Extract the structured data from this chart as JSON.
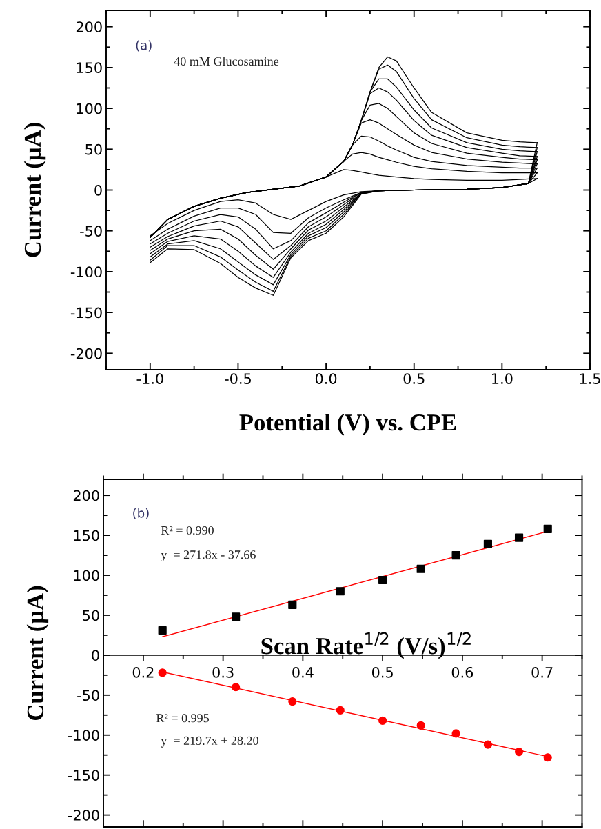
{
  "chart_data": [
    {
      "type": "line",
      "xlabel": "Potential (V) vs. CPE",
      "ylabel": "Current (μA)",
      "annotations": [
        "(a)",
        "40 mM Glucosamine"
      ],
      "xlim": [
        -1.25,
        1.5
      ],
      "xticks": [
        {
          "value": -1.0,
          "label": "-1.0"
        },
        {
          "value": -0.5,
          "label": "-0.5"
        },
        {
          "value": 0.0,
          "label": "0.0"
        },
        {
          "value": 0.5,
          "label": "0.5"
        },
        {
          "value": 1.0,
          "label": "1.0"
        },
        {
          "value": 1.5,
          "label": "1.5"
        }
      ],
      "ylim": [
        -220,
        220
      ],
      "yticks": [
        {
          "value": -200,
          "label": "-200"
        },
        {
          "value": -150,
          "label": "-150"
        },
        {
          "value": -100,
          "label": "-100"
        },
        {
          "value": -50,
          "label": "-50"
        },
        0,
        50,
        100,
        150,
        200
      ],
      "grid": false,
      "legend": false,
      "line_style": "solid",
      "marker": "none",
      "series": [
        {
          "color": "#000000",
          "x": [
            -1.0,
            -0.9,
            -0.75,
            -0.6,
            -0.45,
            -0.3,
            -0.15,
            0.0,
            0.1,
            0.15,
            0.2,
            0.25,
            0.3,
            0.35,
            0.4,
            0.5,
            0.6,
            0.8,
            1.0,
            1.1,
            1.2
          ],
          "values": [
            -58,
            -36,
            -20,
            -10,
            -3,
            1,
            5,
            16,
            25,
            24,
            22,
            20,
            18,
            17,
            16,
            14,
            13,
            12,
            12,
            13,
            14
          ]
        },
        {
          "color": "#000000",
          "x": [
            1.2,
            1.15,
            1.0,
            0.8,
            0.5,
            0.3,
            0.2,
            0.1,
            0.0,
            -0.1,
            -0.2,
            -0.3,
            -0.4,
            -0.5,
            -0.6,
            -0.75,
            -0.9,
            -1.0
          ],
          "values": [
            14,
            8,
            3,
            1,
            0,
            -1,
            -2,
            -6,
            -14,
            -25,
            -36,
            -30,
            -16,
            -12,
            -14,
            -25,
            -41,
            -56
          ]
        },
        {
          "color": "#000000",
          "x": [
            -1.0,
            -0.9,
            -0.75,
            -0.6,
            -0.45,
            -0.3,
            -0.15,
            0.0,
            0.1,
            0.15,
            0.2,
            0.25,
            0.3,
            0.35,
            0.4,
            0.5,
            0.6,
            0.8,
            1.0,
            1.1,
            1.2
          ],
          "values": [
            -58,
            -36,
            -20,
            -10,
            -3,
            1,
            5,
            16,
            35,
            44,
            46,
            44,
            40,
            37,
            34,
            29,
            26,
            23,
            21,
            21,
            21
          ]
        },
        {
          "color": "#000000",
          "x": [
            1.2,
            1.15,
            1.0,
            0.8,
            0.5,
            0.3,
            0.2,
            0.1,
            0.0,
            -0.1,
            -0.2,
            -0.3,
            -0.4,
            -0.5,
            -0.6,
            -0.75,
            -0.9,
            -1.0
          ],
          "values": [
            21,
            8,
            3,
            1,
            0,
            -1,
            -3,
            -12,
            -22,
            -34,
            -53,
            -52,
            -30,
            -22,
            -22,
            -32,
            -48,
            -62
          ]
        },
        {
          "color": "#000000",
          "x": [
            -1.0,
            -0.9,
            -0.75,
            -0.6,
            -0.45,
            -0.3,
            -0.15,
            0.0,
            0.1,
            0.15,
            0.2,
            0.25,
            0.3,
            0.35,
            0.4,
            0.5,
            0.6,
            0.8,
            1.0,
            1.1,
            1.2
          ],
          "values": [
            -58,
            -36,
            -20,
            -10,
            -3,
            1,
            5,
            16,
            35,
            55,
            66,
            65,
            60,
            54,
            49,
            40,
            35,
            30,
            28,
            27,
            27
          ]
        },
        {
          "color": "#000000",
          "x": [
            1.2,
            1.15,
            1.0,
            0.8,
            0.5,
            0.3,
            0.2,
            0.1,
            0.0,
            -0.1,
            -0.2,
            -0.3,
            -0.4,
            -0.5,
            -0.6,
            -0.75,
            -0.9,
            -1.0
          ],
          "values": [
            27,
            8,
            3,
            1,
            0,
            -1,
            -3,
            -15,
            -28,
            -40,
            -62,
            -72,
            -48,
            -33,
            -30,
            -38,
            -53,
            -66
          ]
        },
        {
          "color": "#000000",
          "x": [
            -1.0,
            -0.9,
            -0.75,
            -0.6,
            -0.45,
            -0.3,
            -0.15,
            0.0,
            0.1,
            0.15,
            0.2,
            0.25,
            0.3,
            0.35,
            0.4,
            0.5,
            0.6,
            0.8,
            1.0,
            1.1,
            1.2
          ],
          "values": [
            -58,
            -36,
            -20,
            -10,
            -3,
            1,
            5,
            16,
            35,
            55,
            82,
            86,
            82,
            75,
            68,
            55,
            46,
            38,
            34,
            33,
            32
          ]
        },
        {
          "color": "#000000",
          "x": [
            1.2,
            1.15,
            1.0,
            0.8,
            0.5,
            0.3,
            0.2,
            0.1,
            0.0,
            -0.1,
            -0.2,
            -0.3,
            -0.4,
            -0.5,
            -0.6,
            -0.75,
            -0.9,
            -1.0
          ],
          "values": [
            32,
            8,
            3,
            1,
            0,
            -1,
            -3,
            -18,
            -33,
            -45,
            -68,
            -85,
            -65,
            -45,
            -38,
            -44,
            -57,
            -70
          ]
        },
        {
          "color": "#000000",
          "x": [
            -1.0,
            -0.9,
            -0.75,
            -0.6,
            -0.45,
            -0.3,
            -0.15,
            0.0,
            0.1,
            0.15,
            0.2,
            0.25,
            0.3,
            0.35,
            0.4,
            0.5,
            0.6,
            0.8,
            1.0,
            1.1,
            1.2
          ],
          "values": [
            -58,
            -36,
            -20,
            -10,
            -3,
            1,
            5,
            16,
            35,
            55,
            85,
            104,
            106,
            100,
            90,
            70,
            57,
            45,
            40,
            38,
            37
          ]
        },
        {
          "color": "#000000",
          "x": [
            1.2,
            1.15,
            1.0,
            0.8,
            0.5,
            0.3,
            0.2,
            0.1,
            0.0,
            -0.1,
            -0.2,
            -0.3,
            -0.4,
            -0.5,
            -0.6,
            -0.75,
            -0.9,
            -1.0
          ],
          "values": [
            37,
            8,
            3,
            1,
            0,
            -1,
            -4,
            -21,
            -38,
            -49,
            -72,
            -97,
            -80,
            -60,
            -48,
            -50,
            -60,
            -74
          ]
        },
        {
          "color": "#000000",
          "x": [
            -1.0,
            -0.9,
            -0.75,
            -0.6,
            -0.45,
            -0.3,
            -0.15,
            0.0,
            0.1,
            0.15,
            0.2,
            0.25,
            0.3,
            0.35,
            0.4,
            0.5,
            0.6,
            0.8,
            1.0,
            1.1,
            1.2
          ],
          "values": [
            -58,
            -36,
            -20,
            -10,
            -3,
            1,
            5,
            16,
            35,
            55,
            85,
            118,
            125,
            120,
            110,
            85,
            67,
            52,
            45,
            42,
            41
          ]
        },
        {
          "color": "#000000",
          "x": [
            1.2,
            1.15,
            1.0,
            0.8,
            0.5,
            0.3,
            0.2,
            0.1,
            0.0,
            -0.1,
            -0.2,
            -0.3,
            -0.4,
            -0.5,
            -0.6,
            -0.75,
            -0.9,
            -1.0
          ],
          "values": [
            41,
            8,
            3,
            1,
            0,
            -1,
            -4,
            -24,
            -42,
            -53,
            -76,
            -107,
            -93,
            -75,
            -60,
            -56,
            -63,
            -78
          ]
        },
        {
          "color": "#000000",
          "x": [
            -1.0,
            -0.9,
            -0.75,
            -0.6,
            -0.45,
            -0.3,
            -0.15,
            0.0,
            0.1,
            0.15,
            0.2,
            0.25,
            0.3,
            0.35,
            0.4,
            0.5,
            0.6,
            0.8,
            1.0,
            1.1,
            1.2
          ],
          "values": [
            -58,
            -36,
            -20,
            -10,
            -3,
            1,
            5,
            16,
            35,
            55,
            85,
            120,
            136,
            136,
            126,
            98,
            76,
            58,
            50,
            48,
            47
          ]
        },
        {
          "color": "#000000",
          "x": [
            1.2,
            1.15,
            1.0,
            0.8,
            0.5,
            0.3,
            0.2,
            0.1,
            0.0,
            -0.1,
            -0.2,
            -0.3,
            -0.4,
            -0.5,
            -0.6,
            -0.75,
            -0.9,
            -1.0
          ],
          "values": [
            47,
            8,
            3,
            1,
            0,
            -1,
            -4,
            -27,
            -46,
            -56,
            -79,
            -116,
            -104,
            -88,
            -72,
            -62,
            -66,
            -82
          ]
        },
        {
          "color": "#000000",
          "x": [
            -1.0,
            -0.9,
            -0.75,
            -0.6,
            -0.45,
            -0.3,
            -0.15,
            0.0,
            0.1,
            0.15,
            0.2,
            0.25,
            0.3,
            0.35,
            0.4,
            0.5,
            0.6,
            0.8,
            1.0,
            1.1,
            1.2
          ],
          "values": [
            -58,
            -36,
            -20,
            -10,
            -3,
            1,
            5,
            16,
            35,
            55,
            85,
            120,
            148,
            153,
            145,
            112,
            86,
            64,
            55,
            53,
            52
          ]
        },
        {
          "color": "#000000",
          "x": [
            1.2,
            1.15,
            1.0,
            0.8,
            0.5,
            0.3,
            0.2,
            0.1,
            0.0,
            -0.1,
            -0.2,
            -0.3,
            -0.4,
            -0.5,
            -0.6,
            -0.75,
            -0.9,
            -1.0
          ],
          "values": [
            52,
            8,
            3,
            1,
            0,
            -1,
            -5,
            -30,
            -50,
            -59,
            -81,
            -124,
            -113,
            -98,
            -82,
            -68,
            -68,
            -86
          ]
        },
        {
          "color": "#000000",
          "x": [
            -1.0,
            -0.9,
            -0.75,
            -0.6,
            -0.45,
            -0.3,
            -0.15,
            0.0,
            0.1,
            0.15,
            0.2,
            0.25,
            0.3,
            0.35,
            0.4,
            0.5,
            0.6,
            0.8,
            1.0,
            1.1,
            1.2
          ],
          "values": [
            -58,
            -36,
            -20,
            -10,
            -3,
            1,
            5,
            16,
            35,
            55,
            85,
            120,
            150,
            163,
            158,
            125,
            95,
            70,
            61,
            59,
            58
          ]
        },
        {
          "color": "#000000",
          "x": [
            1.2,
            1.15,
            1.0,
            0.8,
            0.5,
            0.3,
            0.2,
            0.1,
            0.0,
            -0.1,
            -0.2,
            -0.3,
            -0.4,
            -0.5,
            -0.6,
            -0.75,
            -0.9,
            -1.0
          ],
          "values": [
            58,
            8,
            3,
            1,
            0,
            -1,
            -5,
            -33,
            -53,
            -62,
            -83,
            -129,
            -120,
            -107,
            -90,
            -73,
            -72,
            -89
          ]
        }
      ]
    },
    {
      "type": "scatter",
      "xlabel": "Scan Rate$^{1/2}$ (V/s)$^{1/2}$",
      "ylabel": "Current (μA)",
      "annotations": [
        "(b)",
        "R² = 0.990",
        "y  = 271.8x - 37.66",
        "R² = 0.995",
        "y  = 219.7x + 28.20"
      ],
      "xlim": [
        0.15,
        0.75
      ],
      "xticks": [
        0.2,
        0.3,
        0.4,
        0.5,
        0.6,
        0.7
      ],
      "ylim": [
        -215,
        220
      ],
      "yticks": [
        {
          "value": -200,
          "label": "-200"
        },
        {
          "value": -150,
          "label": "-150"
        },
        {
          "value": -100,
          "label": "-100"
        },
        {
          "value": -50,
          "label": "-50"
        },
        0,
        50,
        100,
        150,
        200
      ],
      "grid": false,
      "legend": false,
      "series": [
        {
          "type": "scatter",
          "marker": "square",
          "color": "#000000",
          "x": [
            0.224,
            0.316,
            0.387,
            0.447,
            0.5,
            0.548,
            0.592,
            0.632,
            0.671,
            0.707
          ],
          "values": [
            31,
            48,
            63,
            80,
            94,
            108,
            125,
            139,
            147,
            158
          ]
        },
        {
          "type": "line",
          "color": "#ff0000",
          "x": [
            0.224,
            0.707
          ],
          "values": [
            23,
            155
          ]
        },
        {
          "type": "scatter",
          "marker": "circle",
          "color": "#ff0000",
          "x": [
            0.224,
            0.316,
            0.387,
            0.447,
            0.5,
            0.548,
            0.592,
            0.632,
            0.671,
            0.707
          ],
          "values": [
            -22,
            -40,
            -58,
            -69,
            -82,
            -88,
            -98,
            -112,
            -121,
            -128
          ]
        },
        {
          "type": "line",
          "color": "#ff0000",
          "x": [
            0.224,
            0.707
          ],
          "values": [
            -21,
            -127
          ]
        }
      ]
    }
  ]
}
